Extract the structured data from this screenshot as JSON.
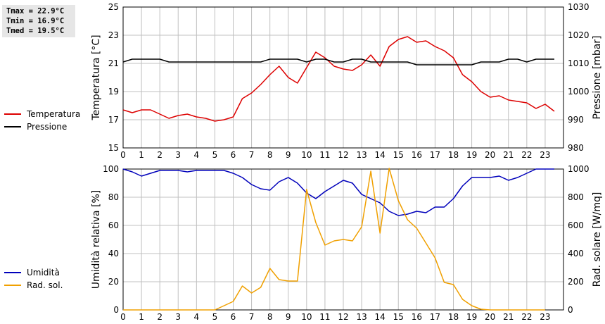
{
  "stats": {
    "tmax": "Tmax = 22.9°C",
    "tmin": "Tmin = 16.9°C",
    "tmed": "Tmed = 19.5°C"
  },
  "chart_data": [
    {
      "type": "line",
      "x_ticks": [
        0,
        1,
        2,
        3,
        4,
        5,
        6,
        7,
        8,
        9,
        10,
        11,
        12,
        13,
        14,
        15,
        16,
        17,
        18,
        19,
        20,
        21,
        22,
        23
      ],
      "xlim": [
        0,
        24
      ],
      "ylabel": "Temperatura [°C]",
      "ylim": [
        15,
        25
      ],
      "y_ticks": [
        15,
        17,
        19,
        21,
        23,
        25
      ],
      "y2label": "Pressione [mbar]",
      "y2lim": [
        980,
        1030
      ],
      "y2_ticks": [
        980,
        990,
        1000,
        1010,
        1020,
        1030
      ],
      "grid": true,
      "legend_position": "left",
      "series": [
        {
          "name": "Temperatura",
          "axis": "left",
          "color": "#dd0000",
          "x": [
            0,
            0.5,
            1,
            1.5,
            2,
            2.5,
            3,
            3.5,
            4,
            4.5,
            5,
            5.5,
            6,
            6.5,
            7,
            7.5,
            8,
            8.5,
            9,
            9.5,
            10,
            10.5,
            11,
            11.5,
            12,
            12.5,
            13,
            13.5,
            14,
            14.5,
            15,
            15.5,
            16,
            16.5,
            17,
            17.5,
            18,
            18.5,
            19,
            19.5,
            20,
            20.5,
            21,
            21.5,
            22,
            22.5,
            23,
            23.5
          ],
          "values": [
            17.7,
            17.5,
            17.7,
            17.7,
            17.4,
            17.1,
            17.3,
            17.4,
            17.2,
            17.1,
            16.9,
            17.0,
            17.2,
            18.5,
            18.9,
            19.5,
            20.2,
            20.8,
            20.0,
            19.6,
            20.7,
            21.8,
            21.4,
            20.8,
            20.6,
            20.5,
            20.9,
            21.6,
            20.8,
            22.2,
            22.7,
            22.9,
            22.5,
            22.6,
            22.2,
            21.9,
            21.4,
            20.2,
            19.7,
            19.0,
            18.6,
            18.7,
            18.4,
            18.3,
            18.2,
            17.8,
            18.1,
            17.6
          ]
        },
        {
          "name": "Pressione",
          "axis": "right",
          "color": "#000000",
          "x": [
            0,
            0.5,
            1,
            1.5,
            2,
            2.5,
            3,
            3.5,
            4,
            4.5,
            5,
            5.5,
            6,
            6.5,
            7,
            7.5,
            8,
            8.5,
            9,
            9.5,
            10,
            10.5,
            11,
            11.5,
            12,
            12.5,
            13,
            13.5,
            14,
            14.5,
            15,
            15.5,
            16,
            16.5,
            17,
            17.5,
            18,
            18.5,
            19,
            19.5,
            20,
            20.5,
            21,
            21.5,
            22,
            22.5,
            23,
            23.5
          ],
          "values": [
            1010.5,
            1011.5,
            1011.5,
            1011.5,
            1011.5,
            1010.5,
            1010.5,
            1010.5,
            1010.5,
            1010.5,
            1010.5,
            1010.5,
            1010.5,
            1010.5,
            1010.5,
            1010.5,
            1011.5,
            1011.5,
            1011.5,
            1011.5,
            1010.5,
            1011.5,
            1011.5,
            1010.5,
            1010.5,
            1011.5,
            1011.5,
            1010.5,
            1010.5,
            1010.5,
            1010.5,
            1010.5,
            1009.5,
            1009.5,
            1009.5,
            1009.5,
            1009.5,
            1009.5,
            1009.5,
            1010.5,
            1010.5,
            1010.5,
            1011.5,
            1011.5,
            1010.5,
            1011.5,
            1011.5,
            1011.5
          ]
        }
      ]
    },
    {
      "type": "line",
      "x_ticks": [
        0,
        1,
        2,
        3,
        4,
        5,
        6,
        7,
        8,
        9,
        10,
        11,
        12,
        13,
        14,
        15,
        16,
        17,
        18,
        19,
        20,
        21,
        22,
        23
      ],
      "xlim": [
        0,
        24
      ],
      "ylabel": "Umidità relativa [%]",
      "ylim": [
        0,
        100
      ],
      "y_ticks": [
        0,
        20,
        40,
        60,
        80,
        100
      ],
      "y2label": "Rad. solare [W/mq]",
      "y2lim": [
        0,
        1000
      ],
      "y2_ticks": [
        0,
        200,
        400,
        600,
        800,
        1000
      ],
      "grid": true,
      "legend_position": "left",
      "series": [
        {
          "name": "Umidità",
          "axis": "left",
          "color": "#0000bb",
          "x": [
            0,
            0.5,
            1,
            1.5,
            2,
            2.5,
            3,
            3.5,
            4,
            4.5,
            5,
            5.5,
            6,
            6.5,
            7,
            7.5,
            8,
            8.5,
            9,
            9.5,
            10,
            10.5,
            11,
            11.5,
            12,
            12.5,
            13,
            13.5,
            14,
            14.5,
            15,
            15.5,
            16,
            16.5,
            17,
            17.5,
            18,
            18.5,
            19,
            19.5,
            20,
            20.5,
            21,
            21.5,
            22,
            22.5,
            23,
            23.5
          ],
          "values": [
            100,
            98,
            95,
            97,
            99,
            99,
            99,
            98,
            99,
            99,
            99,
            99,
            97,
            94,
            89,
            86,
            85,
            91,
            94,
            90,
            83,
            79,
            84,
            88,
            92,
            90,
            82,
            79,
            76,
            70,
            67,
            68,
            70,
            69,
            73,
            73,
            79,
            88,
            94,
            94,
            94,
            95,
            92,
            94,
            97,
            100,
            100,
            100
          ]
        },
        {
          "name": "Rad. sol.",
          "axis": "right",
          "color": "#f0a000",
          "x": [
            0,
            0.5,
            1,
            1.5,
            2,
            2.5,
            3,
            3.5,
            4,
            4.5,
            5,
            5.5,
            6,
            6.5,
            7,
            7.5,
            8,
            8.5,
            9,
            9.5,
            10,
            10.5,
            11,
            11.5,
            12,
            12.5,
            13,
            13.5,
            14,
            14.5,
            15,
            15.5,
            16,
            16.5,
            17,
            17.5,
            18,
            18.5,
            19,
            19.5,
            20,
            20.5,
            21,
            21.5,
            22,
            22.5,
            23
          ],
          "values": [
            0,
            0,
            0,
            0,
            0,
            0,
            0,
            0,
            0,
            0,
            0,
            30,
            60,
            170,
            120,
            160,
            295,
            215,
            205,
            205,
            855,
            620,
            460,
            490,
            500,
            490,
            590,
            985,
            545,
            1005,
            775,
            640,
            580,
            475,
            370,
            195,
            180,
            75,
            30,
            5,
            0,
            0,
            0,
            0,
            0,
            0,
            0
          ]
        }
      ]
    }
  ]
}
